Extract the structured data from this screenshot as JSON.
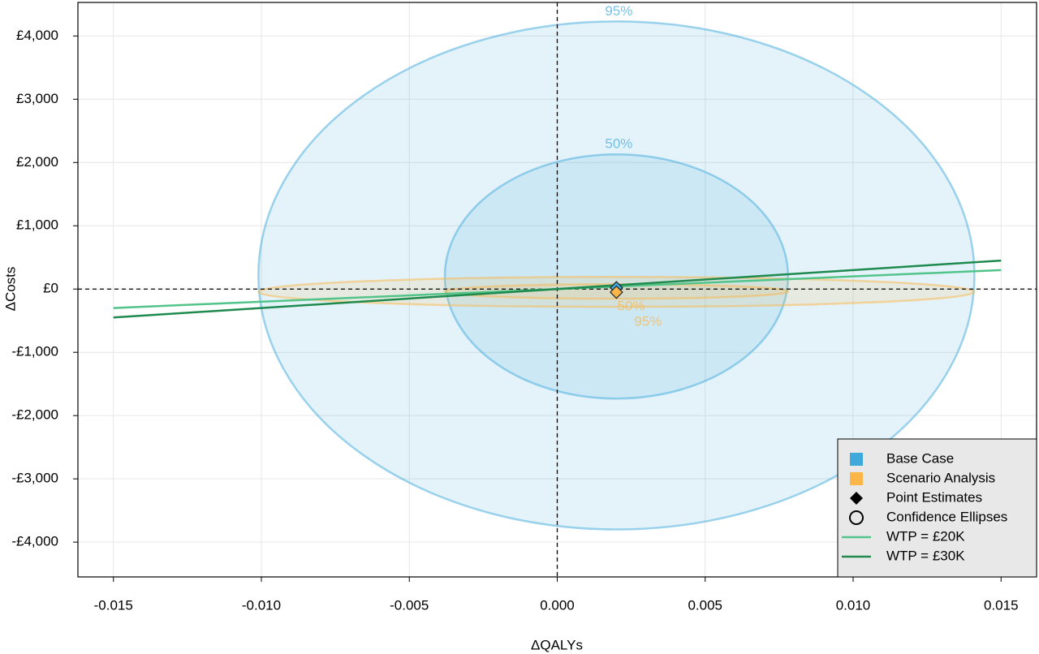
{
  "chart_data": {
    "type": "scatter",
    "x_label": "ΔQALYs",
    "y_label": "ΔCosts",
    "xlim": [
      -0.0162,
      0.0162
    ],
    "ylim": [
      -4550,
      4530
    ],
    "xticks": [
      -0.015,
      {
        "value": -0.01,
        "label": "-0.010"
      },
      -0.005,
      {
        "value": 0,
        "label": "0.000"
      },
      0.005,
      {
        "value": 0.01,
        "label": "0.010"
      },
      0.015
    ],
    "yticks": [
      {
        "value": -4000,
        "label": "-£4,000"
      },
      {
        "value": -3000,
        "label": "-£3,000"
      },
      {
        "value": -2000,
        "label": "-£2,000"
      },
      {
        "value": -1000,
        "label": "-£1,000"
      },
      {
        "value": 0,
        "label": "£0"
      },
      {
        "value": 1000,
        "label": "£1,000"
      },
      {
        "value": 2000,
        "label": "£2,000"
      },
      {
        "value": 3000,
        "label": "£3,000"
      },
      {
        "value": 4000,
        "label": "£4,000"
      }
    ],
    "grid": true,
    "legend_position": "bottom-right",
    "groups": [
      {
        "name": "Base Case",
        "color": "#3fa9dc",
        "label_side": "top",
        "point": {
          "x": 0.002,
          "y": 20
        },
        "ellipses": [
          {
            "label": "95%",
            "cx": 0.002,
            "cy": 215,
            "rx": 0.0121,
            "ry": 4015
          },
          {
            "label": "50%",
            "cx": 0.002,
            "cy": 199,
            "rx": 0.0058,
            "ry": 1930
          }
        ]
      },
      {
        "name": "Scenario Analysis",
        "color": "#fbb548",
        "label_side": "bottom",
        "point": {
          "x": 0.002,
          "y": -50
        },
        "ellipses": [
          {
            "label": "95%",
            "cx": 0.002,
            "cy": -45,
            "rx": 0.0121,
            "ry": 237
          },
          {
            "label": "50%",
            "cx": 0.002,
            "cy": -38,
            "rx": 0.0058,
            "ry": 115
          }
        ]
      }
    ],
    "legend_items": [
      "Point Estimates",
      "Confidence Ellipses"
    ],
    "series": [
      {
        "name": "WTP = £20K",
        "color": "#52c48a",
        "x": [
          -0.015,
          0.015
        ],
        "values": [
          -300,
          300
        ]
      },
      {
        "name": "WTP = £30K",
        "color": "#1e8a4e",
        "x": [
          -0.015,
          0.015
        ],
        "values": [
          -450,
          450
        ]
      }
    ]
  }
}
